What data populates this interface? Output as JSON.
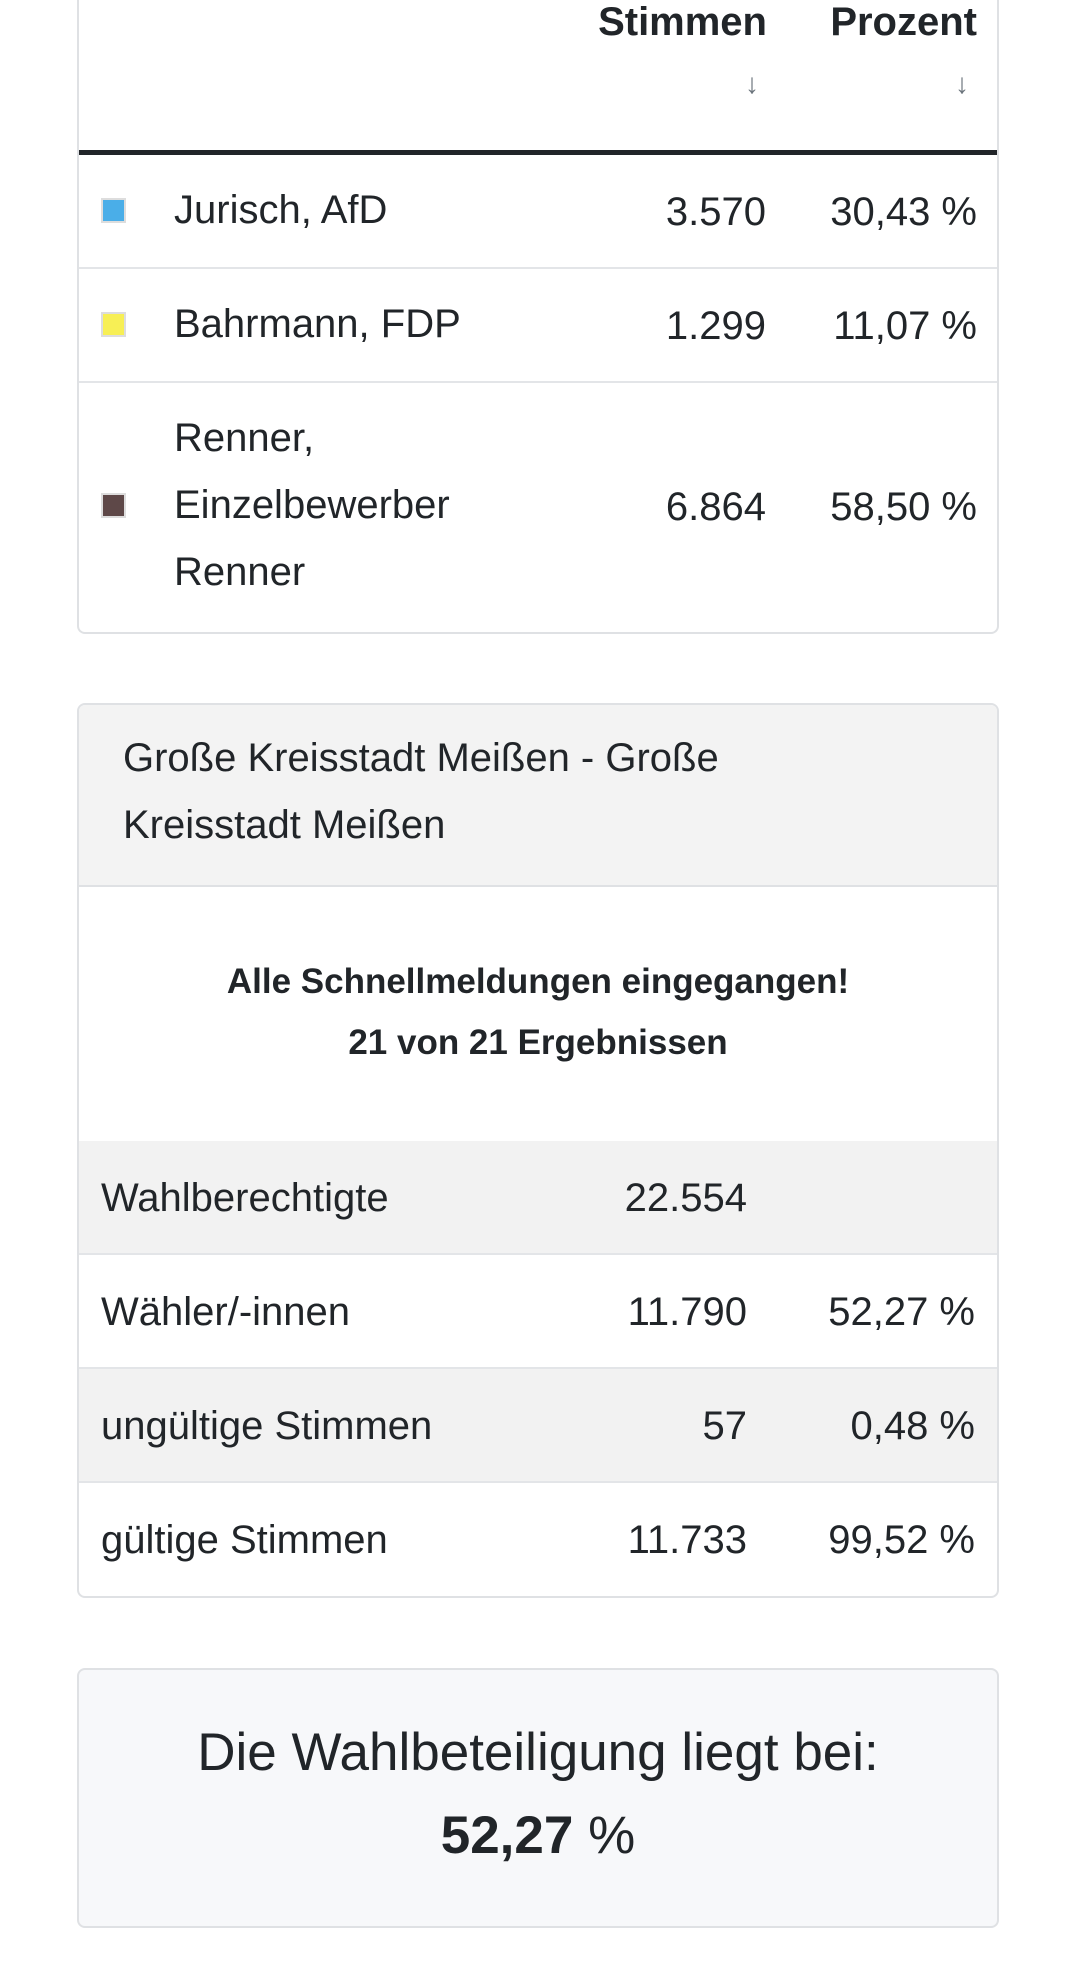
{
  "candidates_table": {
    "columns": {
      "votes": "Stimmen",
      "percent": "Prozent",
      "sort_icon": "↓"
    },
    "rows": [
      {
        "name_lines": [
          "Jurisch, AfD"
        ],
        "color": "#4aaee8",
        "votes": "3.570",
        "percent": "30,43 %"
      },
      {
        "name_lines": [
          "Bahrmann, FDP"
        ],
        "color": "#f7ef55",
        "votes": "1.299",
        "percent": "11,07 %"
      },
      {
        "name_lines": [
          "Renner,",
          "Einzelbewerber",
          "Renner"
        ],
        "color": "#5e4848",
        "votes": "6.864",
        "percent": "58,50 %"
      }
    ]
  },
  "district": {
    "title_lines": [
      "Große Kreisstadt Meißen - Große",
      "Kreisstadt Meißen"
    ],
    "status": "Alle Schnellmeldungen eingegangen!",
    "results_count": "21 von 21 Ergebnissen",
    "stats": [
      {
        "label": "Wahlberechtigte",
        "value": "22.554",
        "percent": ""
      },
      {
        "label": "Wähler/-innen",
        "value": "11.790",
        "percent": "52,27 %"
      },
      {
        "label": "ungültige Stimmen",
        "value": "57",
        "percent": "0,48 %"
      },
      {
        "label": "gültige Stimmen",
        "value": "11.733",
        "percent": "99,52 %"
      }
    ]
  },
  "turnout": {
    "label": "Die Wahlbeteiligung liegt bei:",
    "value": "52,27",
    "unit": "%"
  }
}
